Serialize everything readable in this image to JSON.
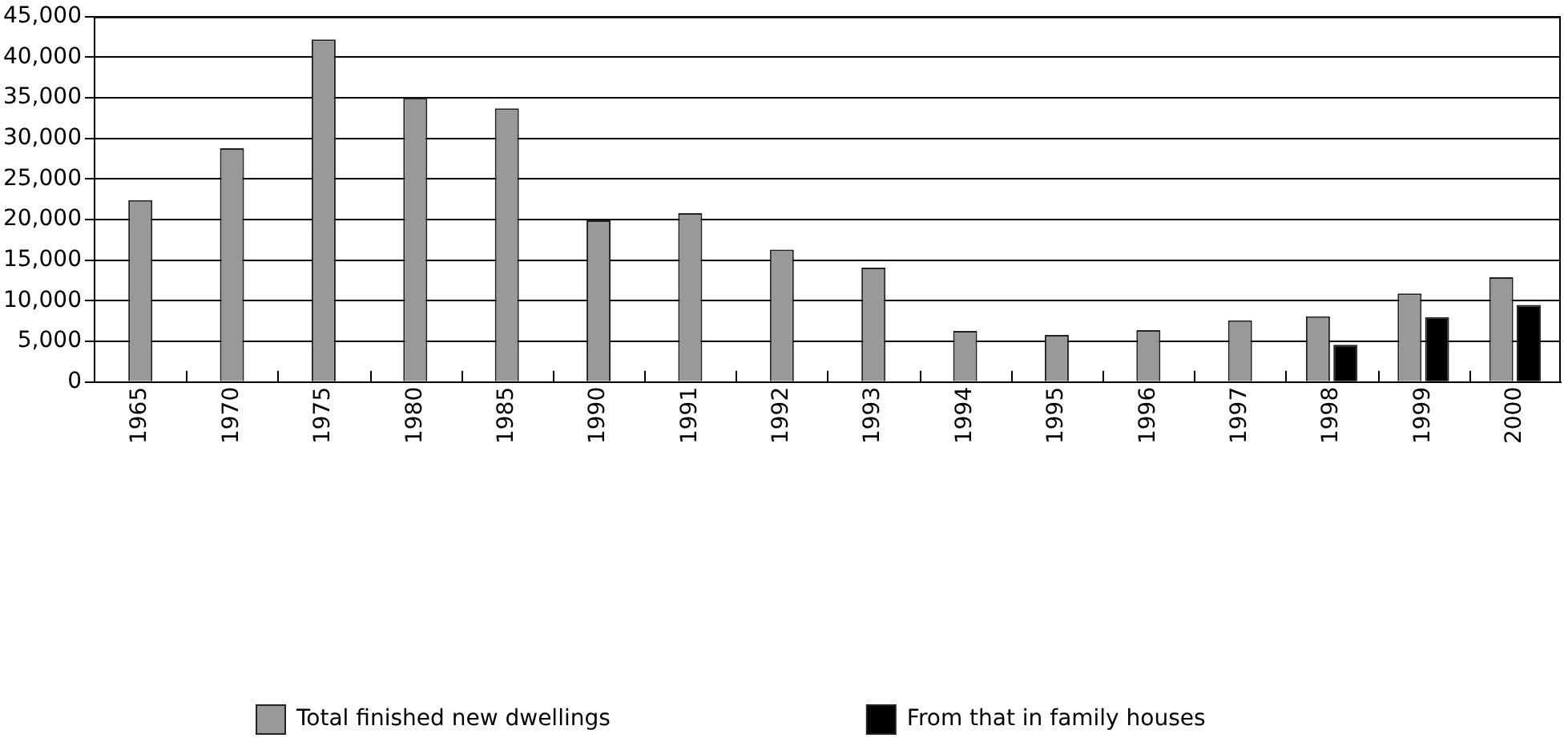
{
  "chart_data": {
    "type": "bar",
    "categories": [
      "1965",
      "1970",
      "1975",
      "1980",
      "1985",
      "1990",
      "1991",
      "1992",
      "1993",
      "1994",
      "1995",
      "1996",
      "1997",
      "1998",
      "1999",
      "2000"
    ],
    "series": [
      {
        "name": "Total finished new dwellings",
        "color": "#999999",
        "values": [
          22400,
          28800,
          42200,
          35000,
          33700,
          19900,
          20800,
          16300,
          14100,
          6300,
          5800,
          6400,
          7600,
          8100,
          10900,
          12900
        ]
      },
      {
        "name": "From that in family houses",
        "color": "#000000",
        "values": [
          null,
          null,
          null,
          null,
          null,
          null,
          null,
          null,
          null,
          null,
          null,
          null,
          null,
          4600,
          8000,
          9500
        ]
      }
    ],
    "ylim": [
      0,
      45000
    ],
    "yticks": [
      {
        "value": 0,
        "label": "0"
      },
      {
        "value": 5000,
        "label": "5,000"
      },
      {
        "value": 10000,
        "label": "10,000"
      },
      {
        "value": 15000,
        "label": "15,000"
      },
      {
        "value": 20000,
        "label": "20,000"
      },
      {
        "value": 25000,
        "label": "25,000"
      },
      {
        "value": 30000,
        "label": "30,000"
      },
      {
        "value": 35000,
        "label": "35,000"
      },
      {
        "value": 40000,
        "label": "40,000"
      },
      {
        "value": 45000,
        "label": "45,000"
      }
    ],
    "grid": "y",
    "legend": "bottom left"
  }
}
